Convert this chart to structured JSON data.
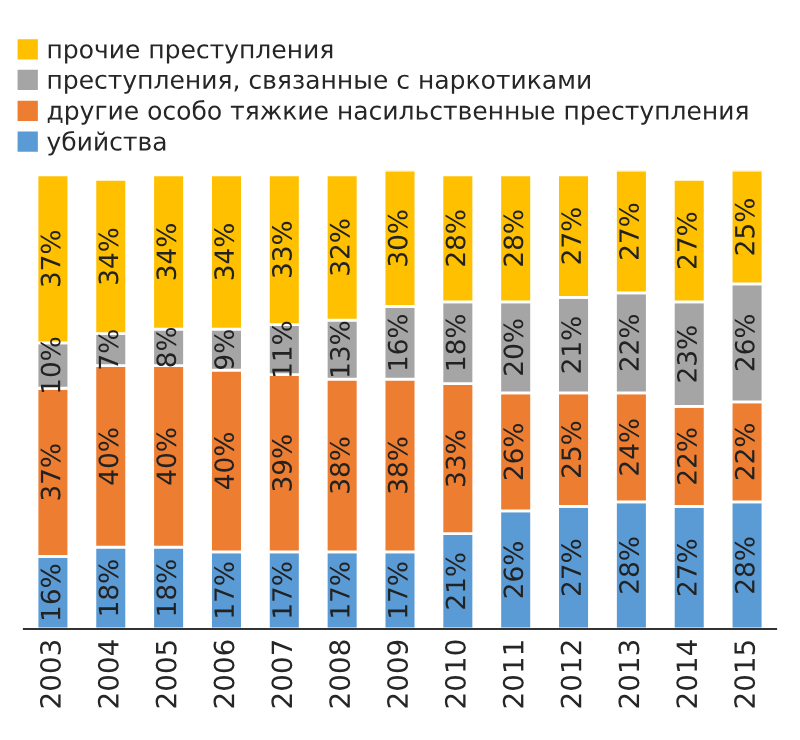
{
  "chart_data": {
    "type": "bar",
    "stacked": true,
    "legend": "top",
    "grid": false,
    "categories": [
      "2003",
      "2004",
      "2005",
      "2006",
      "2007",
      "2008",
      "2009",
      "2010",
      "2011",
      "2012",
      "2013",
      "2014",
      "2015"
    ],
    "series": [
      {
        "name": "убийства",
        "color": "#5b9bd5",
        "values": [
          16,
          18,
          18,
          17,
          17,
          17,
          17,
          21,
          26,
          27,
          28,
          27,
          28
        ],
        "value_labels": [
          "16%",
          "18%",
          "18%",
          "17%",
          "17%",
          "17%",
          "17%",
          "21%",
          "26%",
          "27%",
          "28%",
          "27%",
          "28%"
        ]
      },
      {
        "name": "другие особо тяжкие насильственные преступления",
        "color": "#ed7d31",
        "values": [
          37,
          40,
          40,
          40,
          39,
          38,
          38,
          33,
          26,
          25,
          24,
          22,
          22
        ],
        "value_labels": [
          "37%",
          "40%",
          "40%",
          "40%",
          "39%",
          "38%",
          "38%",
          "33%",
          "26%",
          "25%",
          "24%",
          "22%",
          "22%"
        ]
      },
      {
        "name": "преступления, связанные с наркотиками",
        "color": "#a5a5a5",
        "values": [
          10,
          7,
          8,
          9,
          11,
          13,
          16,
          18,
          20,
          21,
          22,
          23,
          26
        ],
        "value_labels": [
          "10%",
          "7%",
          "8%",
          "9%",
          "11%",
          "13%",
          "16%",
          "18%",
          "20%",
          "21%",
          "22%",
          "23%",
          "26%"
        ]
      },
      {
        "name": "прочие преступления",
        "color": "#ffc000",
        "values": [
          37,
          34,
          34,
          34,
          33,
          32,
          30,
          28,
          28,
          27,
          27,
          27,
          25
        ],
        "value_labels": [
          "37%",
          "34%",
          "34%",
          "34%",
          "33%",
          "32%",
          "30%",
          "28%",
          "28%",
          "27%",
          "27%",
          "27%",
          "25%"
        ]
      }
    ]
  }
}
